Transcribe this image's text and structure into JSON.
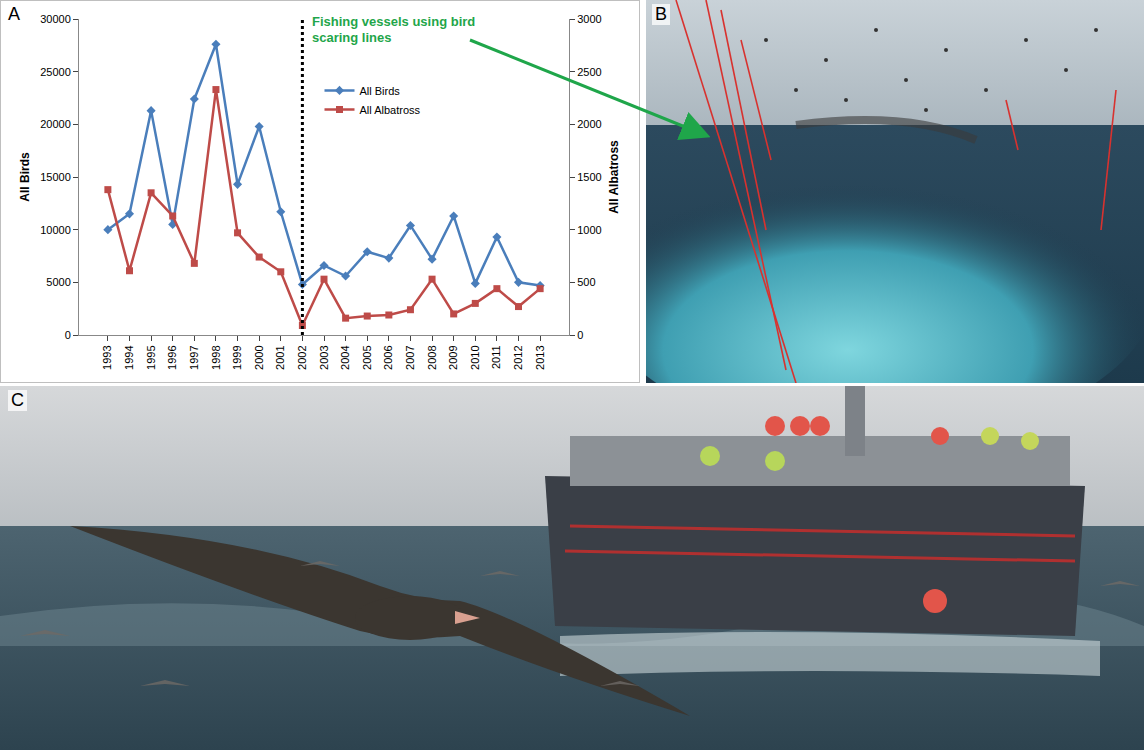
{
  "chart_data": {
    "panel": "A",
    "type": "line",
    "categories": [
      "1993",
      "1994",
      "1995",
      "1996",
      "1997",
      "1998",
      "1999",
      "2000",
      "2001",
      "2002",
      "2003",
      "2004",
      "2005",
      "2006",
      "2007",
      "2008",
      "2009",
      "2010",
      "2011",
      "2012",
      "2013"
    ],
    "series": [
      {
        "name": "All Birds",
        "color": "#4a7ebb",
        "marker": "diamond",
        "values": [
          10000,
          11500,
          21300,
          10500,
          22400,
          27600,
          14300,
          19800,
          11700,
          4800,
          6600,
          5600,
          7900,
          7300,
          10400,
          7200,
          11300,
          4900,
          9300,
          5000,
          4700
        ]
      },
      {
        "name": "All Albatross",
        "color": "#be4b48",
        "marker": "square",
        "axis": "y2",
        "values": [
          1380,
          610,
          1350,
          1130,
          680,
          2330,
          970,
          740,
          600,
          90,
          530,
          160,
          180,
          190,
          240,
          530,
          200,
          300,
          440,
          270,
          440
        ]
      }
    ],
    "ylabel": "All Birds",
    "y2label": "All Albatross",
    "ylim": [
      0,
      30000
    ],
    "yticks": [
      0,
      5000,
      10000,
      15000,
      20000,
      25000,
      30000
    ],
    "y2lim": [
      0,
      3000
    ],
    "y2ticks": [
      0,
      500,
      1000,
      1500,
      2000,
      2500,
      3000
    ],
    "grid": false,
    "legend": "top center",
    "vlines": [
      {
        "x": "2002",
        "line_style": "dotted"
      }
    ],
    "annotation": "Fishing vessels using bird scaring lines"
  },
  "photos": [
    {
      "panel": "B"
    },
    {
      "panel": "C"
    }
  ]
}
